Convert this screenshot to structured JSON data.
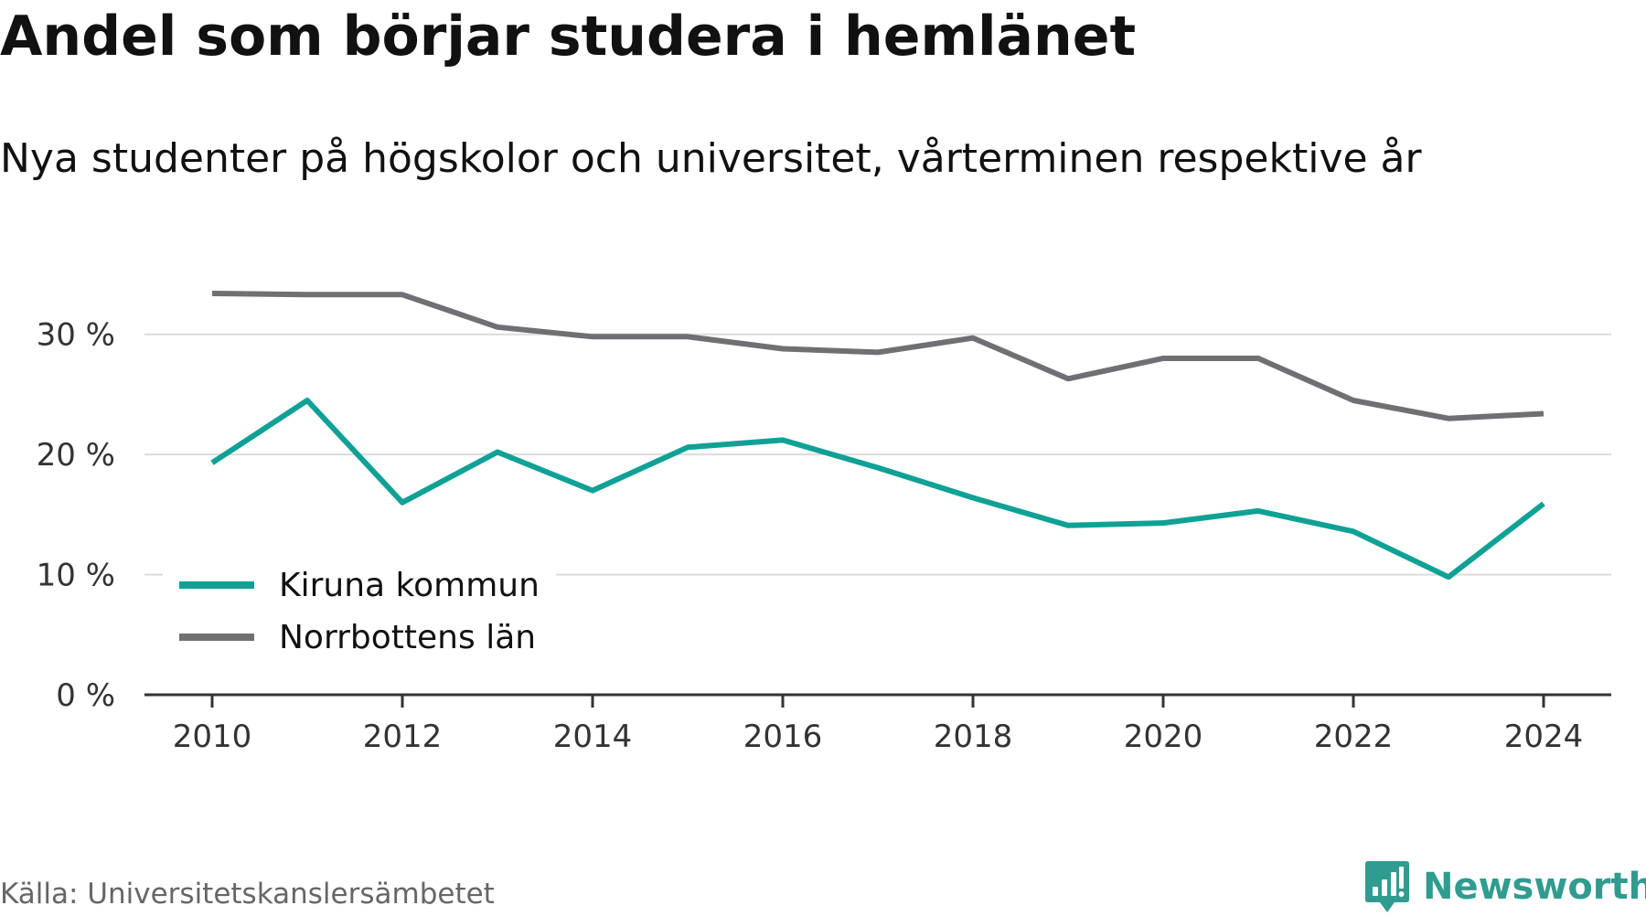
{
  "title": "Andel som börjar studera i hemlänet",
  "subtitle": "Nya studenter på högskolor och universitet, vårterminen respektive år",
  "source": "Källa: Universitetskanslersämbetet",
  "brand": {
    "name": "Newsworthy",
    "logo_icon": "newsworthy-chart-icon",
    "color": "#2f9c8f"
  },
  "chart_data": {
    "type": "line",
    "title": "Andel som börjar studera i hemlänet",
    "subtitle": "Nya studenter på högskolor och universitet, vårterminen respektive år",
    "xlabel": "",
    "ylabel": "",
    "x": [
      2010,
      2011,
      2012,
      2013,
      2014,
      2015,
      2016,
      2017,
      2018,
      2019,
      2020,
      2021,
      2022,
      2023,
      2024
    ],
    "x_ticks": [
      "2010",
      "2012",
      "2014",
      "2016",
      "2018",
      "2020",
      "2022",
      "2024"
    ],
    "y_ticks": [
      {
        "value": 0,
        "label": "0 %"
      },
      {
        "value": 10,
        "label": "10 %"
      },
      {
        "value": 20,
        "label": "20 %"
      },
      {
        "value": 30,
        "label": "30 %"
      }
    ],
    "xlim": [
      2009.3,
      2024.7
    ],
    "ylim": [
      0,
      35
    ],
    "grid": "horizontal",
    "legend": "bottom-left",
    "series": [
      {
        "name": "Kiruna kommun",
        "color": "#0fa195",
        "values": [
          19.3,
          24.5,
          16.0,
          20.2,
          17.0,
          20.6,
          21.2,
          18.9,
          16.4,
          14.1,
          14.3,
          15.3,
          13.6,
          9.8,
          15.9
        ]
      },
      {
        "name": "Norrbottens län",
        "color": "#707074",
        "values": [
          33.4,
          33.3,
          33.3,
          30.6,
          29.8,
          29.8,
          28.8,
          28.5,
          29.7,
          26.3,
          28.0,
          28.0,
          24.5,
          23.0,
          23.4
        ]
      }
    ]
  }
}
